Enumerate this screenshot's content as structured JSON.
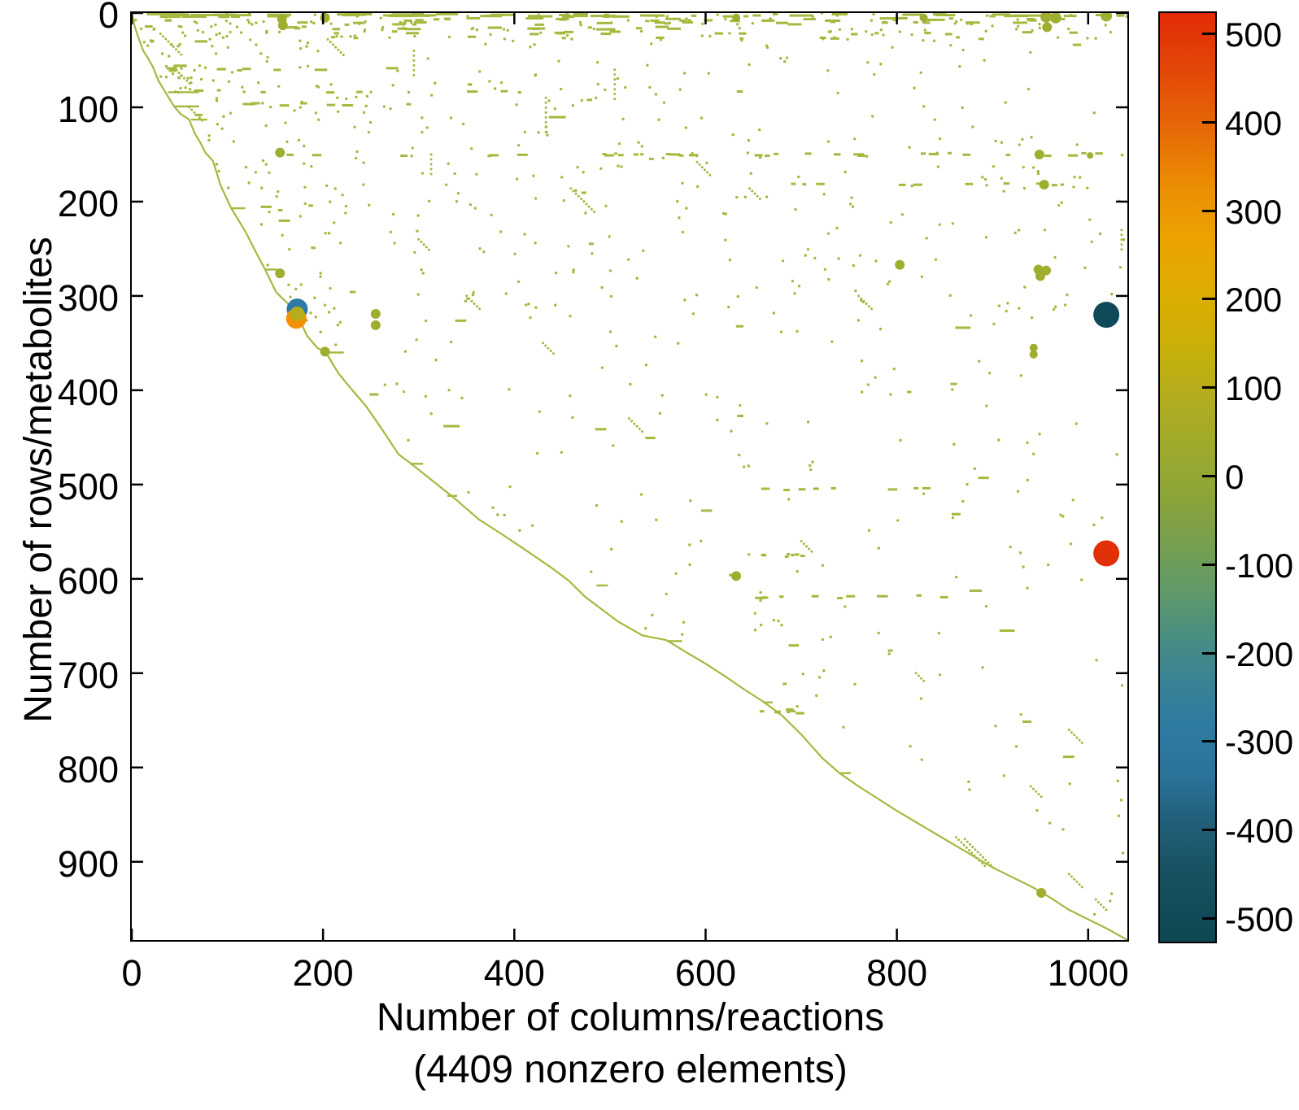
{
  "figure": {
    "xlabel_line1": "Number of columns/reactions",
    "xlabel_line2": "(4409 nonzero elements)",
    "ylabel": "Number of rows/metabolites"
  },
  "chart_data": {
    "type": "scatter",
    "subtype": "sparsity-pattern-spy-plot",
    "title": "",
    "xlabel": "Number of columns/reactions (4409 nonzero elements)",
    "ylabel": "Number of rows/metabolites",
    "nonzero_elements": 4409,
    "xlim": [
      0,
      1041
    ],
    "ylim": [
      0,
      983
    ],
    "y_axis_reversed": true,
    "grid": false,
    "x_ticks": [
      0,
      200,
      400,
      600,
      800,
      1000
    ],
    "y_ticks": [
      0,
      100,
      200,
      300,
      400,
      500,
      600,
      700,
      800,
      900
    ],
    "marker_color": "#a6b83e",
    "medium_marker_color": "#9fae2f",
    "colorbar": {
      "position": "right",
      "vmin": -525,
      "vmax": 525,
      "ticks": [
        500,
        400,
        300,
        200,
        100,
        0,
        -100,
        -200,
        -300,
        -400,
        -500
      ],
      "stops": [
        [
          0,
          "#e22b06"
        ],
        [
          6,
          "#e34708"
        ],
        [
          12,
          "#e66607"
        ],
        [
          18,
          "#ea8a03"
        ],
        [
          24,
          "#eda201"
        ],
        [
          30,
          "#ddad00"
        ],
        [
          36,
          "#c9b00a"
        ],
        [
          42,
          "#b0ac20"
        ],
        [
          48,
          "#9aa930"
        ],
        [
          52,
          "#8ca438"
        ],
        [
          57,
          "#779f4e"
        ],
        [
          62,
          "#619a68"
        ],
        [
          67,
          "#4a8e80"
        ],
        [
          72,
          "#398295"
        ],
        [
          77,
          "#2e7ba2"
        ],
        [
          82,
          "#2a739a"
        ],
        [
          87,
          "#225f79"
        ],
        [
          92,
          "#185263"
        ],
        [
          97,
          "#114b57"
        ],
        [
          100,
          "#0e4752"
        ]
      ]
    },
    "envelope_diagonal": [
      [
        0,
        0
      ],
      [
        3,
        14
      ],
      [
        7,
        26
      ],
      [
        12,
        40
      ],
      [
        17,
        48
      ],
      [
        22,
        57
      ],
      [
        28,
        72
      ],
      [
        34,
        82
      ],
      [
        40,
        92
      ],
      [
        45,
        100
      ],
      [
        51,
        107
      ],
      [
        60,
        113
      ],
      [
        66,
        128
      ],
      [
        72,
        138
      ],
      [
        77,
        148
      ],
      [
        85,
        157
      ],
      [
        93,
        183
      ],
      [
        104,
        207
      ],
      [
        119,
        232
      ],
      [
        130,
        254
      ],
      [
        139,
        271
      ],
      [
        151,
        296
      ],
      [
        162,
        307
      ],
      [
        173,
        319
      ],
      [
        183,
        342
      ],
      [
        194,
        355
      ],
      [
        203,
        360
      ],
      [
        216,
        382
      ],
      [
        229,
        398
      ],
      [
        245,
        417
      ],
      [
        262,
        442
      ],
      [
        279,
        468
      ],
      [
        291,
        477
      ],
      [
        312,
        494
      ],
      [
        338,
        515
      ],
      [
        363,
        537
      ],
      [
        389,
        554
      ],
      [
        414,
        571
      ],
      [
        440,
        589
      ],
      [
        457,
        602
      ],
      [
        474,
        619
      ],
      [
        491,
        632
      ],
      [
        508,
        645
      ],
      [
        534,
        660
      ],
      [
        559,
        665
      ],
      [
        580,
        678
      ],
      [
        600,
        690
      ],
      [
        620,
        703
      ],
      [
        640,
        717
      ],
      [
        660,
        730
      ],
      [
        680,
        745
      ],
      [
        700,
        765
      ],
      [
        722,
        790
      ],
      [
        740,
        806
      ],
      [
        760,
        820
      ],
      [
        780,
        833
      ],
      [
        800,
        846
      ],
      [
        820,
        858
      ],
      [
        840,
        870
      ],
      [
        860,
        882
      ],
      [
        880,
        894
      ],
      [
        900,
        906
      ],
      [
        920,
        916
      ],
      [
        940,
        926
      ],
      [
        951,
        932
      ],
      [
        965,
        941
      ],
      [
        980,
        951
      ],
      [
        1000,
        961
      ],
      [
        1020,
        971
      ],
      [
        1041,
        983
      ]
    ],
    "envelope_stubs": [
      [
        38,
        84,
        38
      ],
      [
        45,
        99,
        30
      ],
      [
        62,
        113,
        20
      ],
      [
        105,
        207,
        16
      ],
      [
        140,
        272,
        14
      ],
      [
        203,
        360,
        22
      ],
      [
        291,
        478,
        16
      ],
      [
        486,
        607,
        14
      ],
      [
        560,
        666,
        18
      ],
      [
        740,
        806,
        14
      ],
      [
        330,
        512,
        12
      ],
      [
        660,
        731,
        12
      ]
    ],
    "large_markers": [
      {
        "col": 1019,
        "row": 320,
        "radius_px": 16,
        "color": "#10495a",
        "value": -520
      },
      {
        "col": 1019,
        "row": 573,
        "radius_px": 16,
        "color": "#e13008",
        "value": 510
      },
      {
        "col": 173,
        "row": 314,
        "radius_px": 13,
        "color": "#2e7aa7",
        "value": -290
      },
      {
        "col": 172,
        "row": 324,
        "radius_px": 12.5,
        "color": "#f29202",
        "value": 320
      },
      {
        "col": 173,
        "row": 319,
        "radius_px": 9,
        "color": "#b7ad1c",
        "value": 90
      }
    ],
    "medium_markers": [
      {
        "col": 157,
        "row": 6,
        "r": 6
      },
      {
        "col": 158,
        "row": 13,
        "r": 6
      },
      {
        "col": 202,
        "row": 5,
        "r": 6
      },
      {
        "col": 632,
        "row": 5,
        "r": 5
      },
      {
        "col": 828,
        "row": 5,
        "r": 5
      },
      {
        "col": 956,
        "row": 4,
        "r": 7
      },
      {
        "col": 966,
        "row": 5,
        "r": 7
      },
      {
        "col": 957,
        "row": 15,
        "r": 6
      },
      {
        "col": 1019,
        "row": 3,
        "r": 7
      },
      {
        "col": 155,
        "row": 148,
        "r": 6
      },
      {
        "col": 949,
        "row": 150,
        "r": 6
      },
      {
        "col": 1002,
        "row": 151,
        "r": 4
      },
      {
        "col": 954,
        "row": 182,
        "r": 6
      },
      {
        "col": 803,
        "row": 267,
        "r": 6
      },
      {
        "col": 155,
        "row": 276,
        "r": 6
      },
      {
        "col": 948,
        "row": 272,
        "r": 6
      },
      {
        "col": 956,
        "row": 273,
        "r": 6
      },
      {
        "col": 950,
        "row": 279,
        "r": 6
      },
      {
        "col": 255,
        "row": 319,
        "r": 6
      },
      {
        "col": 255,
        "row": 331,
        "r": 6
      },
      {
        "col": 202,
        "row": 359,
        "r": 6
      },
      {
        "col": 943,
        "row": 355,
        "r": 5
      },
      {
        "col": 943,
        "row": 362,
        "r": 5
      },
      {
        "col": 632,
        "row": 597,
        "r": 6
      },
      {
        "col": 951,
        "row": 933,
        "r": 6
      }
    ],
    "dash_rows": [
      {
        "row": 2.5,
        "c0": 4,
        "c1": 330,
        "n": 26,
        "l0": 8,
        "l1": 40
      },
      {
        "row": 2.5,
        "c0": 330,
        "c1": 1041,
        "n": 34,
        "l0": 5,
        "l1": 34
      },
      {
        "row": 7,
        "c0": 55,
        "c1": 1041,
        "n": 30,
        "l0": 4,
        "l1": 22
      },
      {
        "row": 11,
        "c0": 140,
        "c1": 980,
        "n": 22,
        "l0": 4,
        "l1": 18
      },
      {
        "row": 16,
        "c0": 140,
        "c1": 560,
        "n": 14,
        "l0": 5,
        "l1": 24
      },
      {
        "row": 21,
        "c0": 150,
        "c1": 1041,
        "n": 18,
        "l0": 4,
        "l1": 16
      },
      {
        "row": 26,
        "c0": 200,
        "c1": 900,
        "n": 10,
        "l0": 3,
        "l1": 12
      },
      {
        "row": 60,
        "c0": 36,
        "c1": 300,
        "n": 8,
        "l0": 5,
        "l1": 18
      },
      {
        "row": 83,
        "c0": 38,
        "c1": 420,
        "n": 8,
        "l0": 4,
        "l1": 14
      },
      {
        "row": 97,
        "c0": 46,
        "c1": 260,
        "n": 6,
        "l0": 5,
        "l1": 16
      },
      {
        "row": 150,
        "c0": 150,
        "c1": 1035,
        "n": 34,
        "l0": 3,
        "l1": 14
      },
      {
        "row": 182,
        "c0": 520,
        "c1": 980,
        "n": 10,
        "l0": 4,
        "l1": 12
      },
      {
        "row": 505,
        "c0": 560,
        "c1": 840,
        "n": 8,
        "l0": 4,
        "l1": 12
      },
      {
        "row": 575,
        "c0": 630,
        "c1": 700,
        "n": 9,
        "l0": 3,
        "l1": 6
      },
      {
        "row": 619,
        "c0": 640,
        "c1": 860,
        "n": 9,
        "l0": 5,
        "l1": 14
      },
      {
        "row": 740,
        "c0": 620,
        "c1": 700,
        "n": 6,
        "l0": 4,
        "l1": 10
      }
    ],
    "diag_chains": [
      [
        30,
        22,
        9
      ],
      [
        44,
        58,
        7
      ],
      [
        60,
        100,
        6
      ],
      [
        205,
        28,
        7
      ],
      [
        591,
        158,
        6
      ],
      [
        459,
        186,
        10
      ],
      [
        646,
        186,
        5
      ],
      [
        862,
        874,
        12
      ],
      [
        871,
        876,
        12
      ],
      [
        520,
        430,
        6
      ],
      [
        700,
        560,
        5
      ],
      [
        760,
        300,
        6
      ],
      [
        980,
        760,
        6
      ],
      [
        940,
        820,
        5
      ],
      [
        820,
        700,
        4
      ],
      [
        300,
        240,
        5
      ],
      [
        350,
        300,
        6
      ],
      [
        430,
        350,
        5
      ],
      [
        980,
        913,
        6
      ],
      [
        1008,
        940,
        5
      ]
    ],
    "vertical_runs": [
      [
        295,
        40,
        6
      ],
      [
        433,
        90,
        8
      ],
      [
        505,
        60,
        7
      ],
      [
        313,
        150,
        5
      ],
      [
        1035,
        230,
        5
      ]
    ],
    "random_fill": {
      "seed": 42,
      "body_points": 640,
      "body_dashes": 40,
      "top_extra_points": 90
    }
  }
}
